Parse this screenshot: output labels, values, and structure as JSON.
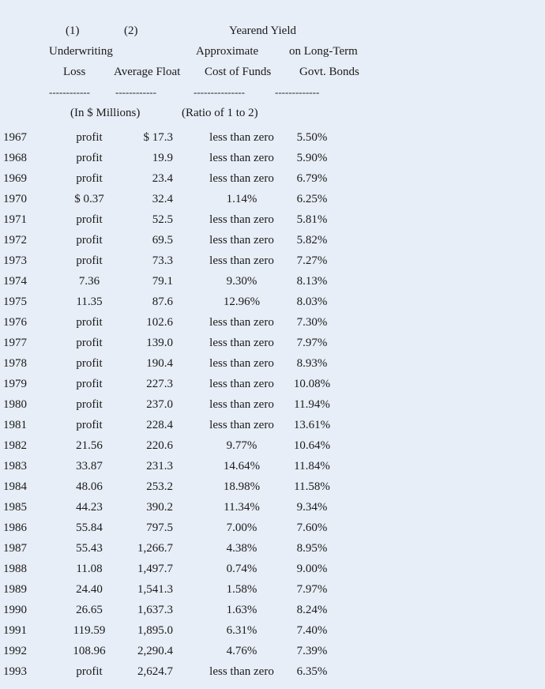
{
  "header": {
    "col1_number": "(1)",
    "col2_number": "(2)",
    "yield_group_title": "Yearend Yield",
    "col1_line1": "Underwriting",
    "col3_line1": "Approximate",
    "col4_line1": "on Long-Term",
    "col1_line2": "Loss",
    "col2_line2": "Average Float",
    "col3_line2": "Cost of Funds",
    "col4_line2": "Govt. Bonds",
    "rule1": "------------",
    "rule2": "------------",
    "rule3": "---------------",
    "rule4": "-------------",
    "units_label": "(In $ Millions)",
    "ratio_label": "(Ratio of 1 to 2)"
  },
  "rows": [
    {
      "year": "1967",
      "loss": "profit",
      "float": "$ 17.3",
      "cost": "less than zero",
      "yield": "5.50%"
    },
    {
      "year": "1968",
      "loss": "profit",
      "float": "19.9",
      "cost": "less than zero",
      "yield": "5.90%"
    },
    {
      "year": "1969",
      "loss": "profit",
      "float": "23.4",
      "cost": "less than zero",
      "yield": "6.79%"
    },
    {
      "year": "1970",
      "loss": "$ 0.37",
      "float": "32.4",
      "cost": "1.14%",
      "yield": "6.25%"
    },
    {
      "year": "1971",
      "loss": "profit",
      "float": "52.5",
      "cost": "less than zero",
      "yield": "5.81%"
    },
    {
      "year": "1972",
      "loss": "profit",
      "float": "69.5",
      "cost": "less than zero",
      "yield": "5.82%"
    },
    {
      "year": "1973",
      "loss": "profit",
      "float": "73.3",
      "cost": "less than zero",
      "yield": "7.27%"
    },
    {
      "year": "1974",
      "loss": "7.36",
      "float": "79.1",
      "cost": "9.30%",
      "yield": "8.13%"
    },
    {
      "year": "1975",
      "loss": "11.35",
      "float": "87.6",
      "cost": "12.96%",
      "yield": "8.03%"
    },
    {
      "year": "1976",
      "loss": "profit",
      "float": "102.6",
      "cost": "less than zero",
      "yield": "7.30%"
    },
    {
      "year": "1977",
      "loss": "profit",
      "float": "139.0",
      "cost": "less than zero",
      "yield": "7.97%"
    },
    {
      "year": "1978",
      "loss": "profit",
      "float": "190.4",
      "cost": "less than zero",
      "yield": "8.93%"
    },
    {
      "year": "1979",
      "loss": "profit",
      "float": "227.3",
      "cost": "less than zero",
      "yield": "10.08%"
    },
    {
      "year": "1980",
      "loss": "profit",
      "float": "237.0",
      "cost": "less than zero",
      "yield": "11.94%"
    },
    {
      "year": "1981",
      "loss": "profit",
      "float": "228.4",
      "cost": "less than zero",
      "yield": "13.61%"
    },
    {
      "year": "1982",
      "loss": "21.56",
      "float": "220.6",
      "cost": "9.77%",
      "yield": "10.64%"
    },
    {
      "year": "1983",
      "loss": "33.87",
      "float": "231.3",
      "cost": "14.64%",
      "yield": "11.84%"
    },
    {
      "year": "1984",
      "loss": "48.06",
      "float": "253.2",
      "cost": "18.98%",
      "yield": "11.58%"
    },
    {
      "year": "1985",
      "loss": "44.23",
      "float": "390.2",
      "cost": "11.34%",
      "yield": "9.34%"
    },
    {
      "year": "1986",
      "loss": "55.84",
      "float": "797.5",
      "cost": "7.00%",
      "yield": "7.60%"
    },
    {
      "year": "1987",
      "loss": "55.43",
      "float": "1,266.7",
      "cost": "4.38%",
      "yield": "8.95%"
    },
    {
      "year": "1988",
      "loss": "11.08",
      "float": "1,497.7",
      "cost": "0.74%",
      "yield": "9.00%"
    },
    {
      "year": "1989",
      "loss": "24.40",
      "float": "1,541.3",
      "cost": "1.58%",
      "yield": "7.97%"
    },
    {
      "year": "1990",
      "loss": "26.65",
      "float": "1,637.3",
      "cost": "1.63%",
      "yield": "8.24%"
    },
    {
      "year": "1991",
      "loss": "119.59",
      "float": "1,895.0",
      "cost": "6.31%",
      "yield": "7.40%"
    },
    {
      "year": "1992",
      "loss": "108.96",
      "float": "2,290.4",
      "cost": "4.76%",
      "yield": "7.39%"
    },
    {
      "year": "1993",
      "loss": "profit",
      "float": "2,624.7",
      "cost": "less than zero",
      "yield": "6.35%"
    }
  ]
}
